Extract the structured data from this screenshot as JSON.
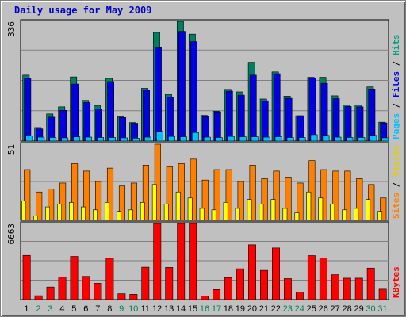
{
  "chart_data": [
    {
      "type": "bar",
      "title": "Daily usage for May 2009",
      "ylabel_parts": [
        {
          "text": "Pages",
          "color": "#00c0ff"
        },
        {
          "text": " / ",
          "color": "#000000"
        },
        {
          "text": "Files",
          "color": "#0000e0"
        },
        {
          "text": " / ",
          "color": "#000000"
        },
        {
          "text": "Hits",
          "color": "#00a080"
        }
      ],
      "ymax_label": "336",
      "ylim": [
        0,
        336
      ],
      "categories": [
        "1",
        "2",
        "3",
        "4",
        "5",
        "6",
        "7",
        "8",
        "9",
        "10",
        "11",
        "12",
        "13",
        "14",
        "15",
        "16",
        "17",
        "18",
        "19",
        "20",
        "21",
        "22",
        "23",
        "24",
        "25",
        "26",
        "27",
        "28",
        "29",
        "30",
        "31"
      ],
      "series": [
        {
          "name": "Hits",
          "color": "#008060",
          "values": [
            185,
            38,
            76,
            96,
            180,
            114,
            99,
            176,
            68,
            52,
            148,
            305,
            131,
            336,
            300,
            72,
            84,
            145,
            138,
            221,
            118,
            194,
            126,
            71,
            179,
            179,
            127,
            101,
            101,
            152,
            53
          ]
        },
        {
          "name": "Files",
          "color": "#0000e0",
          "values": [
            176,
            34,
            67,
            86,
            160,
            108,
            90,
            167,
            66,
            50,
            144,
            264,
            124,
            308,
            279,
            68,
            82,
            140,
            129,
            185,
            113,
            189,
            120,
            71,
            177,
            162,
            119,
            97,
            96,
            146,
            51
          ]
        },
        {
          "name": "Pages",
          "color": "#00c0ff",
          "values": [
            14,
            11,
            10,
            9,
            12,
            11,
            10,
            10,
            9,
            8,
            11,
            27,
            13,
            12,
            24,
            11,
            10,
            13,
            12,
            12,
            11,
            12,
            10,
            10,
            18,
            16,
            11,
            10,
            10,
            16,
            9
          ]
        }
      ]
    },
    {
      "type": "bar",
      "ylabel_parts": [
        {
          "text": "Sites",
          "color": "#ff8000"
        },
        {
          "text": " / ",
          "color": "#000000"
        },
        {
          "text": "Visits",
          "color": "#e0d000"
        }
      ],
      "ymax_label": "51",
      "ylim": [
        0,
        51
      ],
      "categories": [
        "1",
        "2",
        "3",
        "4",
        "5",
        "6",
        "7",
        "8",
        "9",
        "10",
        "11",
        "12",
        "13",
        "14",
        "15",
        "16",
        "17",
        "18",
        "19",
        "20",
        "21",
        "22",
        "23",
        "24",
        "25",
        "26",
        "27",
        "28",
        "29",
        "30",
        "31"
      ],
      "series": [
        {
          "name": "Visits",
          "color": "#ffff00",
          "values": [
            13,
            3,
            9,
            11,
            12,
            9,
            7,
            12,
            6,
            7,
            12,
            24,
            11,
            19,
            15,
            8,
            7,
            12,
            8,
            14,
            11,
            14,
            8,
            5,
            19,
            15,
            11,
            7,
            8,
            14,
            6
          ]
        },
        {
          "name": "Sites",
          "color": "#ff8000",
          "values": [
            34,
            19,
            21,
            25,
            38,
            33,
            26,
            35,
            23,
            25,
            37,
            51,
            36,
            38,
            41,
            27,
            34,
            34,
            26,
            37,
            28,
            33,
            29,
            25,
            40,
            34,
            33,
            33,
            28,
            24,
            15
          ]
        }
      ]
    },
    {
      "type": "bar",
      "ylabel_parts": [
        {
          "text": "KBytes",
          "color": "#ff0000"
        }
      ],
      "ymax_label": "6663",
      "ylim": [
        0,
        6663
      ],
      "categories": [
        "1",
        "2",
        "3",
        "4",
        "5",
        "6",
        "7",
        "8",
        "9",
        "10",
        "11",
        "12",
        "13",
        "14",
        "15",
        "16",
        "17",
        "18",
        "19",
        "20",
        "21",
        "22",
        "23",
        "24",
        "25",
        "26",
        "27",
        "28",
        "29",
        "30",
        "31"
      ],
      "series": [
        {
          "name": "KBytes",
          "color": "#ff0000",
          "values": [
            3870,
            340,
            1100,
            1960,
            3780,
            2030,
            1430,
            3620,
            510,
            460,
            2840,
            6663,
            2820,
            6663,
            6663,
            300,
            880,
            1930,
            2700,
            4800,
            2560,
            4520,
            1840,
            670,
            3850,
            3630,
            2180,
            1880,
            1880,
            2760,
            910
          ]
        }
      ]
    }
  ],
  "x_axis": {
    "weekday_color": "#000000",
    "weekend_color": "#00805c",
    "weekend_days": [
      "2",
      "3",
      "9",
      "10",
      "16",
      "17",
      "23",
      "24",
      "30",
      "31"
    ]
  }
}
